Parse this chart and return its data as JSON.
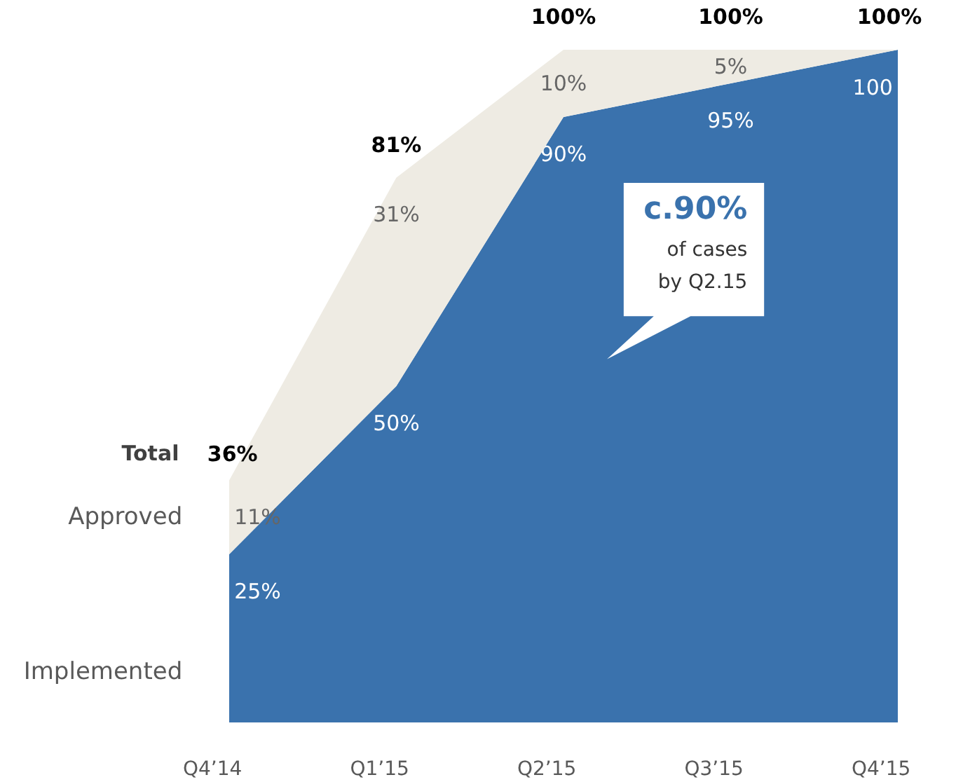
{
  "chart_data": {
    "type": "area",
    "stacked": true,
    "categories": [
      "Q4’14",
      "Q1’15",
      "Q2’15",
      "Q3’15",
      "Q4’15"
    ],
    "series": [
      {
        "name": "Implemented",
        "color": "#3a72ad",
        "values": [
          25,
          50,
          90,
          95,
          100
        ],
        "value_labels": [
          "25%",
          "50%",
          "90%",
          "95%",
          "100"
        ]
      },
      {
        "name": "Approved",
        "color": "#eeebe3",
        "values": [
          11,
          31,
          10,
          5,
          0
        ],
        "value_labels": [
          "11%",
          "31%",
          "10%",
          "5%",
          null
        ]
      }
    ],
    "totals": [
      "36%",
      "81%",
      "100%",
      "100%",
      "100%"
    ],
    "legend_title": "Total",
    "annotations": [
      "c.90%\nof cases\nby Q2.15"
    ],
    "grid": false,
    "legend": "left"
  }
}
